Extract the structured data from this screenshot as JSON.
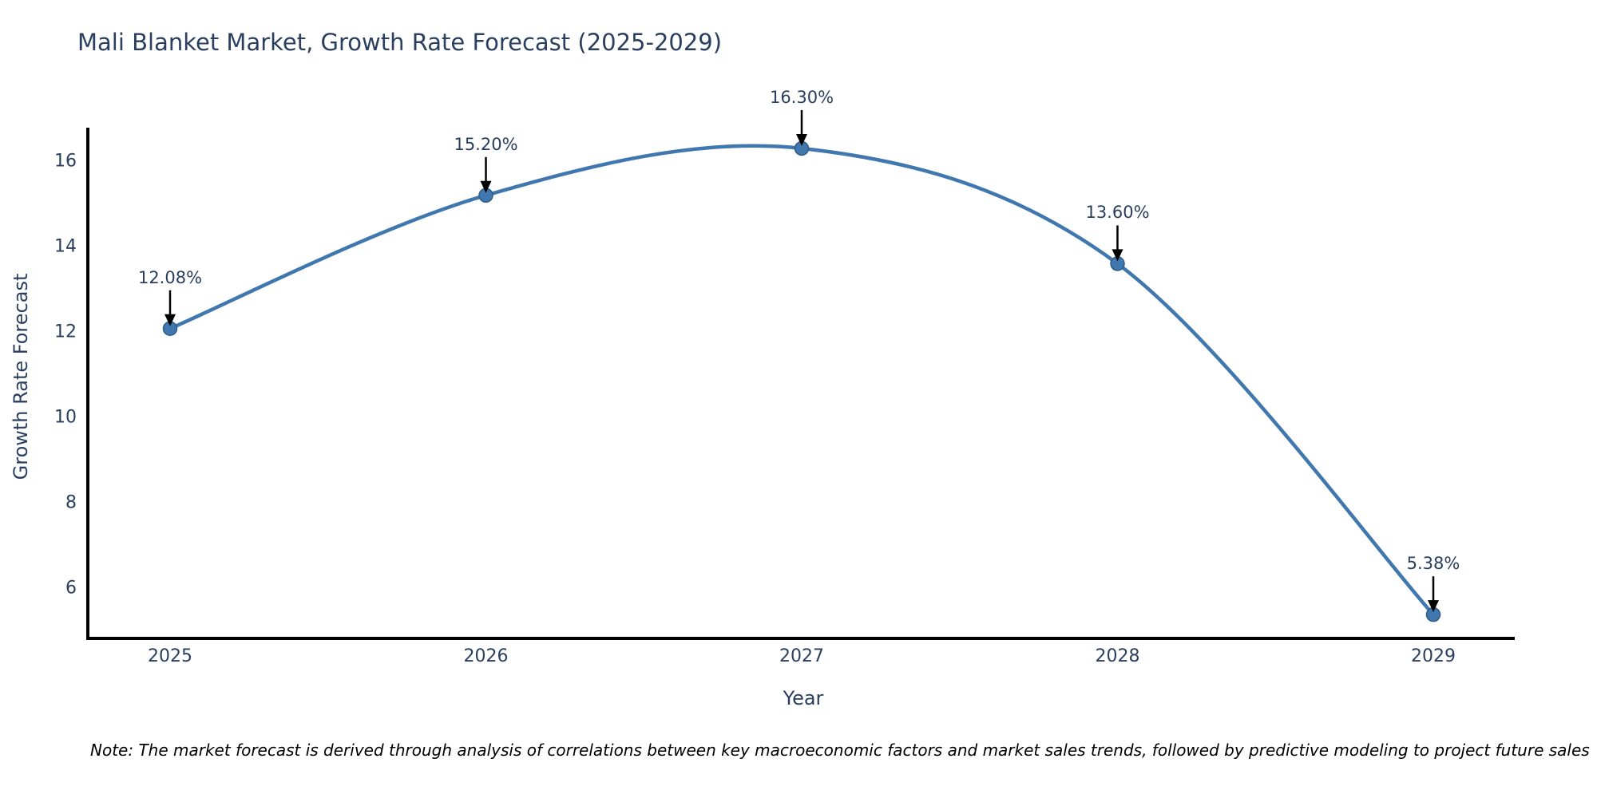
{
  "note": "Note: The market forecast is derived through analysis of correlations between key macroeconomic factors and market sales trends, followed by predictive modeling to project future sales",
  "chart_data": {
    "type": "line",
    "title": "Mali Blanket Market, Growth Rate Forecast (2025-2029)",
    "xlabel": "Year",
    "ylabel": "Growth Rate Forecast",
    "x": [
      2025,
      2026,
      2027,
      2028,
      2029
    ],
    "values": [
      12.08,
      15.2,
      16.3,
      13.6,
      5.38
    ],
    "point_labels": [
      "12.08%",
      "15.20%",
      "16.30%",
      "13.60%",
      "5.38%"
    ],
    "xticks": [
      "2025",
      "2026",
      "2027",
      "2028",
      "2029"
    ],
    "yticks": [
      6,
      8,
      10,
      12,
      14,
      16
    ],
    "ylim": [
      4.8,
      16.8
    ],
    "line_shape": "spline",
    "grid": false,
    "legend_visible": false,
    "annotations_have_arrows": true,
    "colors": {
      "line": "#3f77ae",
      "marker": "#3f77ae",
      "marker_edge": "#2f5d86",
      "chart_text": "#2a3f5f",
      "axis_line": "#000000",
      "arrow": "#000000",
      "note_text": "#000000",
      "background": "#ffffff"
    }
  }
}
